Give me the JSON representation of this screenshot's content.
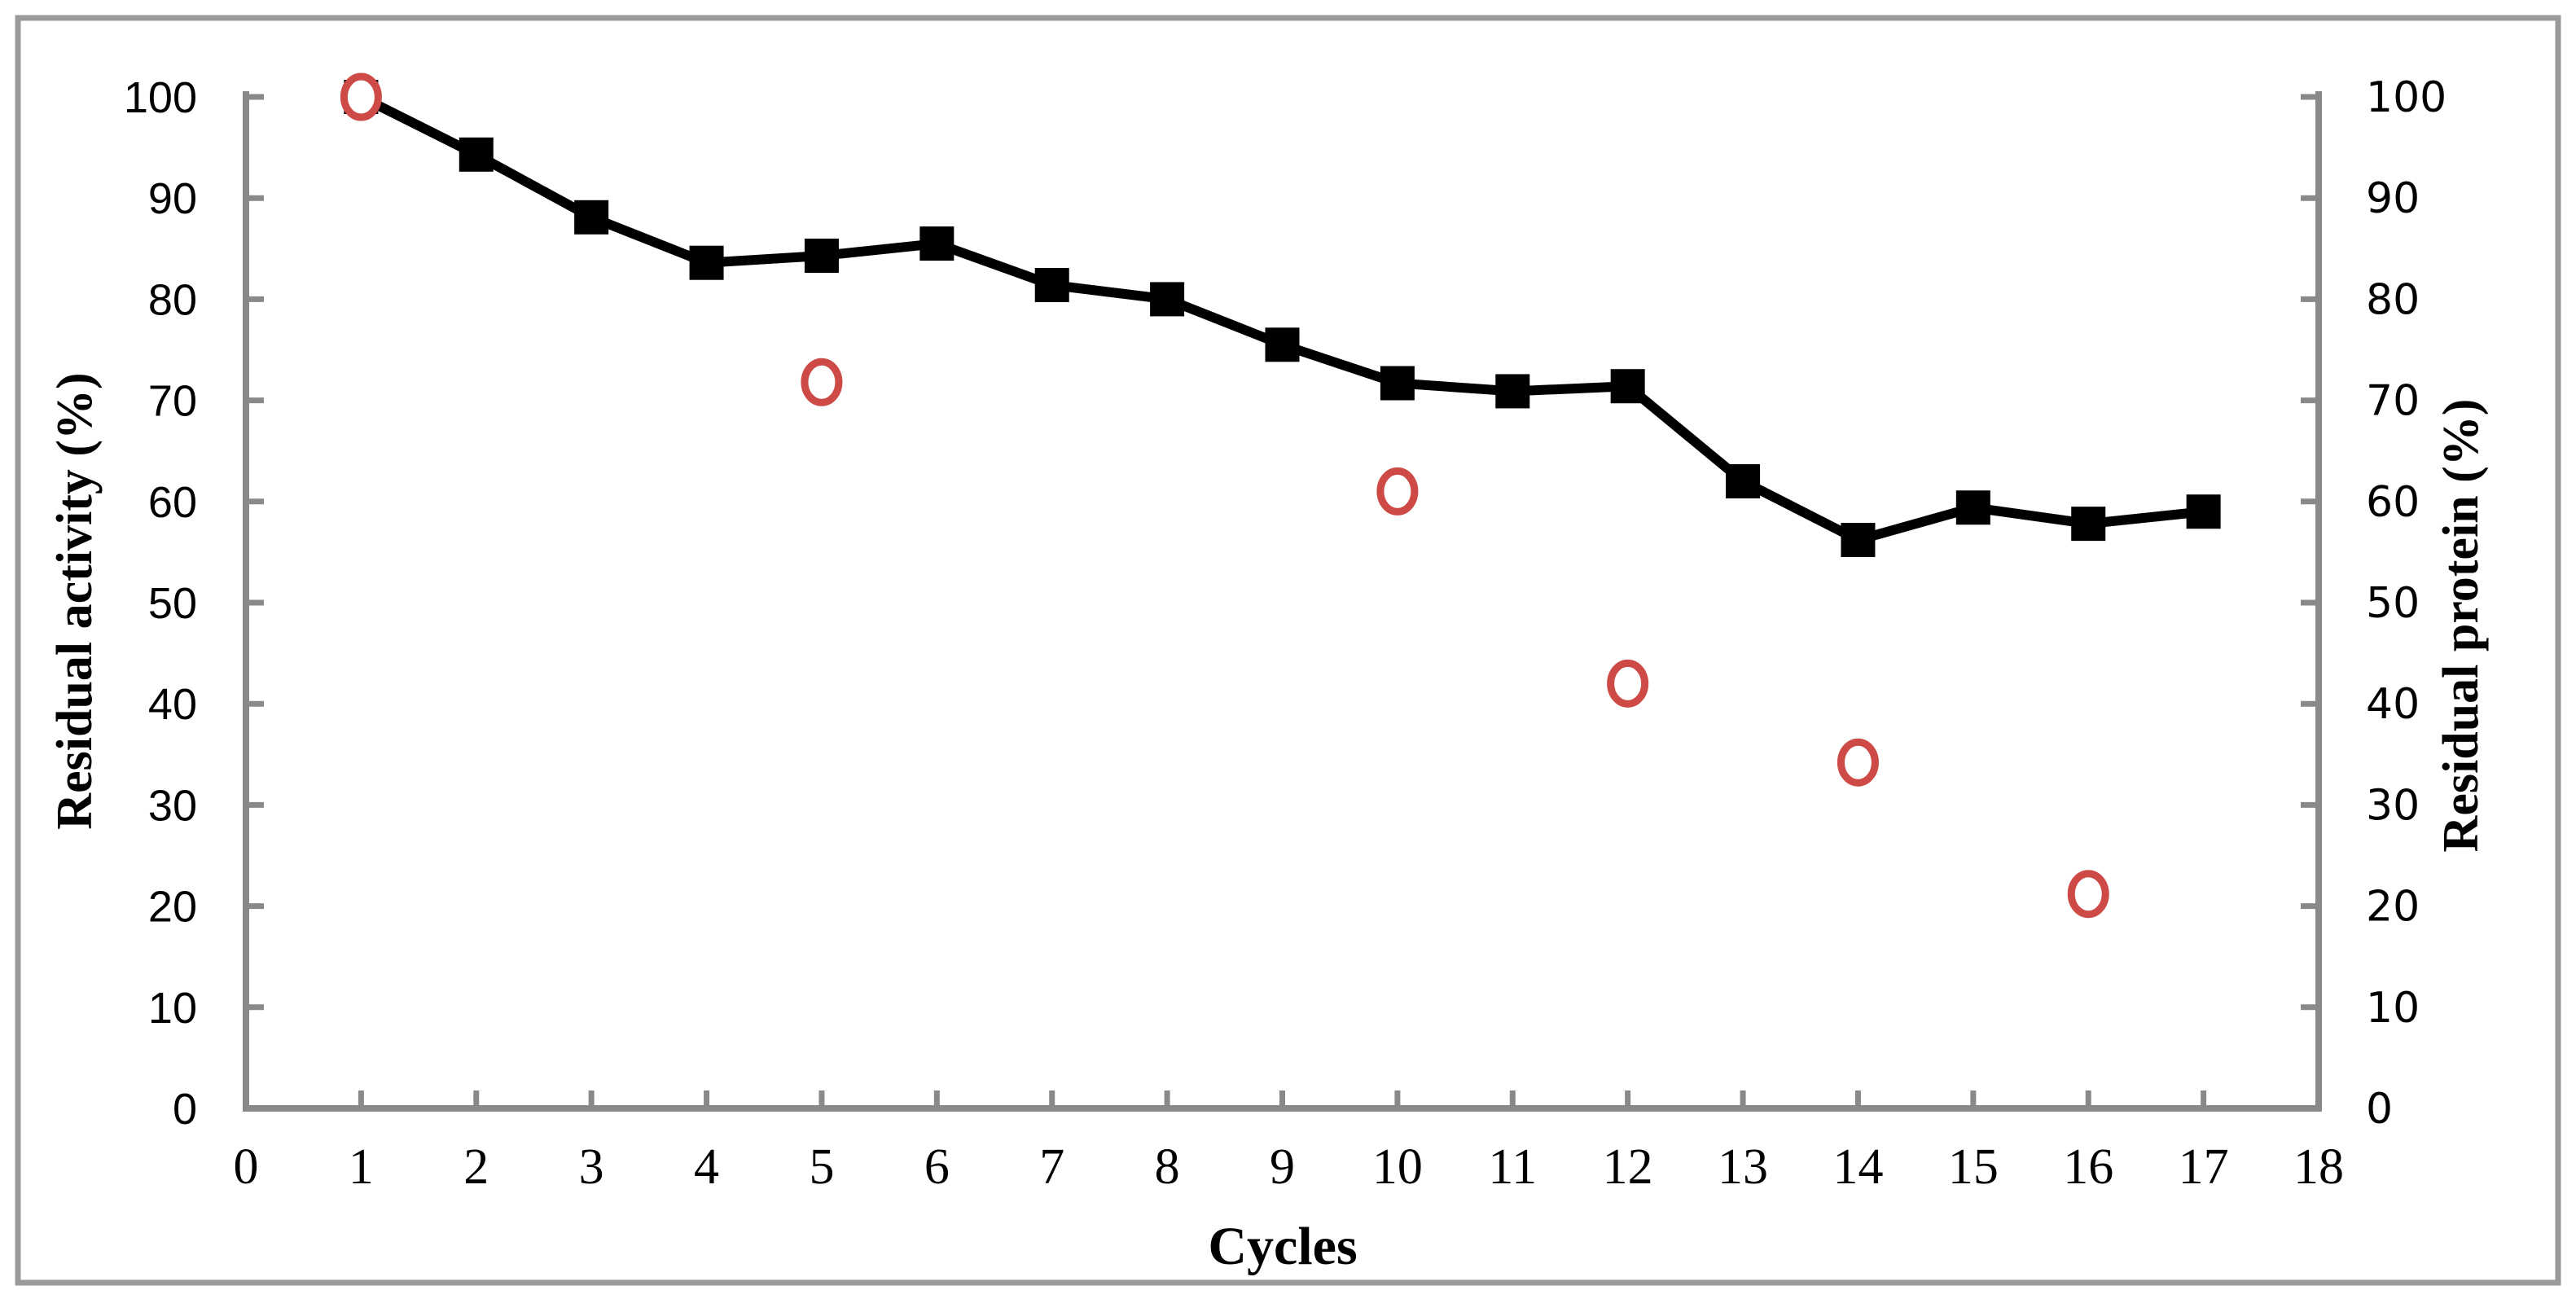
{
  "figure": {
    "background_color": "#ffffff",
    "border_color": "#9a9a9a",
    "axis_color": "#898989"
  },
  "chart_data": {
    "type": "line",
    "title": "",
    "xlabel": "Cycles",
    "ylabel_left": "Residual activity (%)",
    "ylabel_right": "Residual protein (%)",
    "xlim": [
      0,
      18
    ],
    "ylim_left": [
      0,
      100
    ],
    "ylim_right": [
      0,
      100
    ],
    "x_ticks": [
      0,
      1,
      2,
      3,
      4,
      5,
      6,
      7,
      8,
      9,
      10,
      11,
      12,
      13,
      14,
      15,
      16,
      17,
      18
    ],
    "y_ticks_left": [
      0,
      10,
      20,
      30,
      40,
      50,
      60,
      70,
      80,
      90,
      100
    ],
    "y_ticks_right": [
      0,
      10,
      20,
      30,
      40,
      50,
      60,
      70,
      80,
      90,
      100
    ],
    "grid": false,
    "legend_position": "none",
    "series": [
      {
        "name": "Residual activity",
        "axis": "left",
        "marker": "filled-square",
        "line_style": "solid",
        "color": "#000000",
        "x": [
          1,
          2,
          3,
          4,
          5,
          6,
          7,
          8,
          9,
          10,
          11,
          12,
          13,
          14,
          15,
          16,
          17
        ],
        "values": [
          100,
          94.3,
          88.1,
          83.6,
          84.3,
          85.5,
          81.4,
          80.0,
          75.5,
          71.7,
          70.9,
          71.4,
          62.0,
          56.2,
          59.4,
          57.8,
          59.0
        ]
      },
      {
        "name": "Residual protein",
        "axis": "right",
        "marker": "open-circle",
        "line_style": "none",
        "color": "#ce4a46",
        "x": [
          1,
          5,
          10,
          12,
          14,
          16
        ],
        "values": [
          100,
          71.8,
          61.0,
          42.0,
          34.2,
          21.2
        ]
      }
    ]
  }
}
